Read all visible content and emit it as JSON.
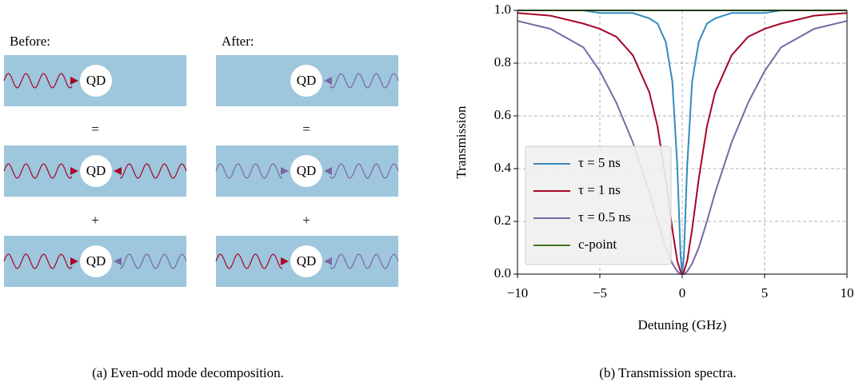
{
  "panel_a": {
    "before_label": "Before:",
    "after_label": "After:",
    "qd_label": "QD",
    "equals": "=",
    "plus": "+",
    "caption": "(a) Even-odd mode decomposition."
  },
  "chart_data": {
    "type": "line",
    "caption": "(b) Transmission spectra.",
    "x_label": "Detuning (GHz)",
    "y_label": "Transmission",
    "x": [
      -10,
      -8,
      -6,
      -5,
      -4,
      -3,
      -2,
      -1.5,
      -1,
      -0.6,
      -0.3,
      -0.1,
      0,
      0.1,
      0.3,
      0.6,
      1,
      1.5,
      2,
      3,
      4,
      5,
      6,
      8,
      10
    ],
    "series": [
      {
        "name": "τ = 5 ns",
        "color": "#348abd",
        "values": [
          1,
          1,
          1,
          0.99,
          0.99,
          0.99,
          0.97,
          0.95,
          0.88,
          0.73,
          0.41,
          0.07,
          0,
          0.07,
          0.41,
          0.73,
          0.88,
          0.95,
          0.97,
          0.99,
          0.99,
          0.99,
          1,
          1,
          1
        ]
      },
      {
        "name": "τ = 1 ns",
        "color": "#a60628",
        "values": [
          0.99,
          0.98,
          0.95,
          0.93,
          0.9,
          0.83,
          0.69,
          0.56,
          0.36,
          0.17,
          0.05,
          0.01,
          0,
          0.01,
          0.05,
          0.17,
          0.36,
          0.56,
          0.69,
          0.83,
          0.9,
          0.93,
          0.95,
          0.98,
          0.99
        ]
      },
      {
        "name": "τ = 0.5 ns",
        "color": "#7a68a6",
        "values": [
          0.96,
          0.93,
          0.86,
          0.77,
          0.65,
          0.5,
          0.31,
          0.2,
          0.1,
          0.04,
          0.01,
          0,
          0,
          0,
          0.01,
          0.04,
          0.1,
          0.2,
          0.31,
          0.5,
          0.65,
          0.77,
          0.86,
          0.93,
          0.96
        ]
      },
      {
        "name": "c-point",
        "color": "#467821",
        "values": [
          1,
          1,
          1,
          1,
          1,
          1,
          1,
          1,
          1,
          1,
          1,
          1,
          1,
          1,
          1,
          1,
          1,
          1,
          1,
          1,
          1,
          1,
          1,
          1,
          1
        ]
      }
    ],
    "xlim": [
      -10,
      10
    ],
    "ylim": [
      0,
      1
    ],
    "xticks": [
      {
        "value": -10,
        "label": "−10"
      },
      {
        "value": -5,
        "label": "−5"
      },
      0,
      5,
      10
    ],
    "yticks": [
      {
        "value": 0,
        "label": "0.0"
      },
      0.2,
      0.4,
      0.6,
      0.8,
      {
        "value": 1,
        "label": "1.0"
      }
    ],
    "grid": true,
    "legend": "lower left"
  }
}
